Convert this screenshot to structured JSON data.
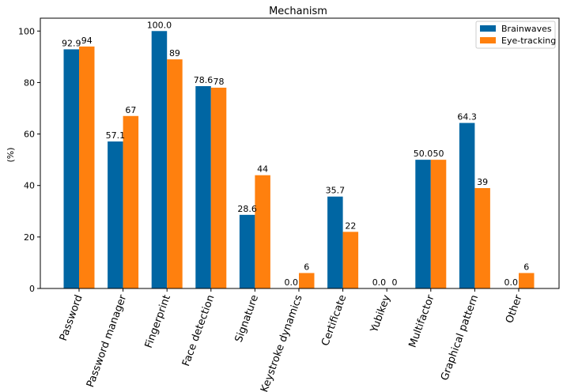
{
  "chart_data": {
    "type": "bar",
    "title": "Mechanism",
    "xlabel": "",
    "ylabel": "(%)",
    "ylim": [
      0,
      105
    ],
    "yticks": [
      "0",
      "20",
      "40",
      "60",
      "80",
      "100"
    ],
    "grid": false,
    "legend_position": "top-right",
    "categories": [
      "Password",
      "Password manager",
      "Fingerprint",
      "Face detection",
      "Signature",
      "Keystroke dynamics",
      "Certificate",
      "Yubikey",
      "Multifactor",
      "Graphical pattern",
      "Other"
    ],
    "series": [
      {
        "name": "Brainwaves",
        "color": "#0066a3",
        "values": [
          92.9,
          57.1,
          100.0,
          78.6,
          28.6,
          0.0,
          35.7,
          0.0,
          50.0,
          64.3,
          0.0
        ],
        "labels": [
          "92.9",
          "57.1",
          "100.0",
          "78.6",
          "28.6",
          "0.0",
          "35.7",
          "0.0",
          "50.0",
          "64.3",
          "0.0"
        ]
      },
      {
        "name": "Eye-tracking",
        "color": "#ff800e",
        "values": [
          94,
          67,
          89,
          78,
          44,
          6,
          22,
          0,
          50,
          39,
          6
        ],
        "labels": [
          "94",
          "67",
          "89",
          "78",
          "44",
          "6",
          "22",
          "0",
          "50",
          "39",
          "6"
        ]
      }
    ]
  }
}
